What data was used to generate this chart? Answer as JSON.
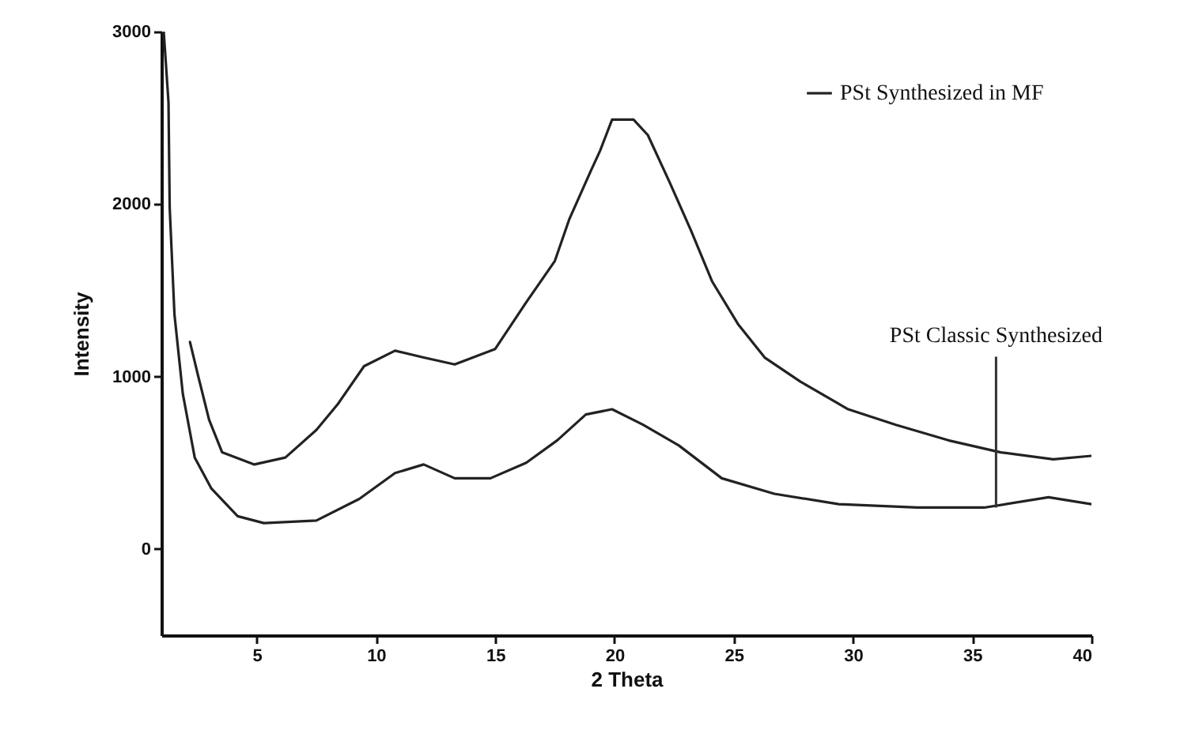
{
  "chart_data": {
    "type": "line",
    "xlabel": "2 Theta",
    "ylabel": "Intensity",
    "xlim": [
      1,
      40
    ],
    "ylim": [
      -500,
      3000
    ],
    "xticks": [
      5,
      10,
      15,
      20,
      25,
      30,
      35,
      40
    ],
    "yticks": [
      0,
      1000,
      2000,
      3000
    ],
    "grid": false,
    "legend": "top right",
    "marker": "none",
    "line_style": "solid",
    "annotations": [
      {
        "text": "PSt Classic Synthesized",
        "x": 36,
        "y": 240
      }
    ],
    "series": [
      {
        "name": "PSt Synthesized in MF",
        "color": "#222222",
        "x": [
          2.2,
          2.55,
          3.0,
          3.55,
          4.9,
          6.2,
          7.5,
          8.4,
          9.5,
          10.8,
          12.0,
          13.3,
          15.0,
          16.3,
          17.5,
          18.1,
          19.0,
          19.4,
          19.9,
          20.8,
          21.4,
          22.3,
          23.2,
          24.1,
          25.2,
          26.3,
          27.8,
          29.8,
          31.8,
          34.0,
          36.2,
          38.4,
          40
        ],
        "values": [
          1200,
          1000,
          750,
          560,
          490,
          530,
          690,
          840,
          1060,
          1150,
          1110,
          1070,
          1160,
          1430,
          1670,
          1910,
          2190,
          2310,
          2490,
          2490,
          2400,
          2130,
          1850,
          1550,
          1300,
          1110,
          970,
          810,
          720,
          630,
          560,
          520,
          540
        ]
      },
      {
        "color": "#222222",
        "x": [
          1.1,
          1.3,
          1.35,
          1.55,
          1.9,
          2.4,
          3.1,
          4.2,
          5.3,
          7.5,
          9.3,
          10.8,
          12.0,
          13.3,
          14.8,
          16.3,
          17.6,
          18.8,
          19.9,
          21.2,
          22.7,
          24.5,
          26.7,
          29.4,
          32.7,
          35.5,
          38.2,
          40
        ],
        "values": [
          3000,
          2590,
          1980,
          1360,
          900,
          530,
          350,
          190,
          150,
          165,
          290,
          440,
          490,
          410,
          410,
          500,
          630,
          780,
          810,
          720,
          600,
          410,
          320,
          260,
          240,
          240,
          300,
          260
        ]
      }
    ]
  }
}
